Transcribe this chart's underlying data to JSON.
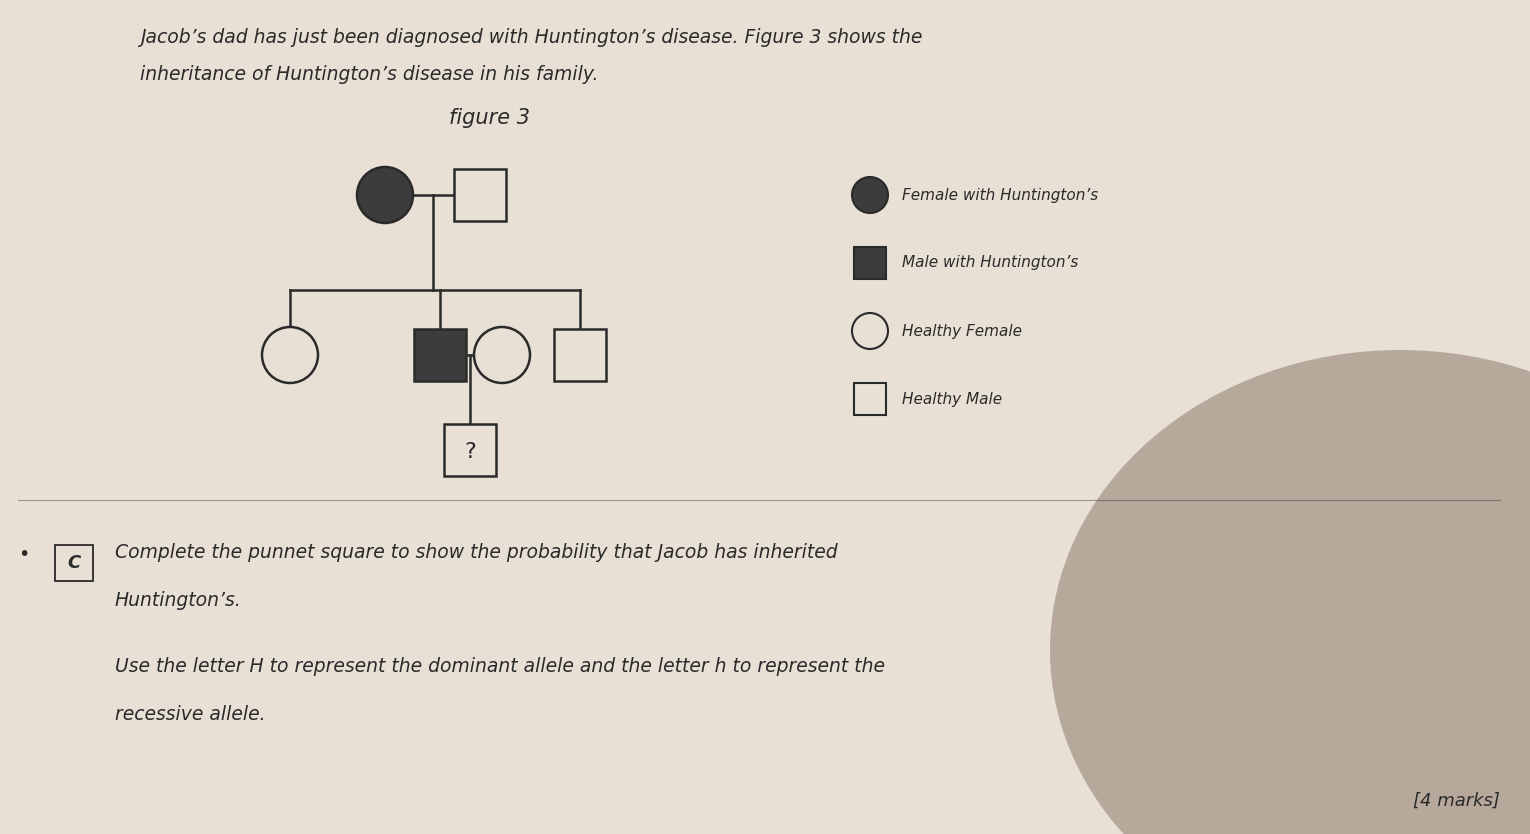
{
  "bg_color": "#e8e0d5",
  "title_text_line1": "Jacob’s dad has just been diagnosed with Huntington’s disease. Figure 3 shows the",
  "title_text_line2": "inheritance of Huntington’s disease in his family.",
  "figure_label": "figure 3",
  "legend_items": [
    {
      "label": "Female with Huntington’s",
      "type": "circle",
      "filled": true
    },
    {
      "label": "Male with Huntington’s",
      "type": "square",
      "filled": true
    },
    {
      "label": "Healthy Female",
      "type": "circle",
      "filled": false
    },
    {
      "label": "Healthy Male",
      "type": "square",
      "filled": false
    }
  ],
  "bottom_text_c_label": "C",
  "bottom_text_line1": "Complete the punnet square to show the probability that Jacob has inherited",
  "bottom_text_line2": "Huntington’s.",
  "bottom_text_line3": "Use the letter H to represent the dominant allele and the letter h to represent the",
  "bottom_text_line4": "recessive allele.",
  "marks_text": "[4 marks]",
  "dark_color": "#2a2a2a",
  "filled_color": "#3c3c3c",
  "line_color": "#2a2a2a",
  "shadow_color": "#8a7060"
}
